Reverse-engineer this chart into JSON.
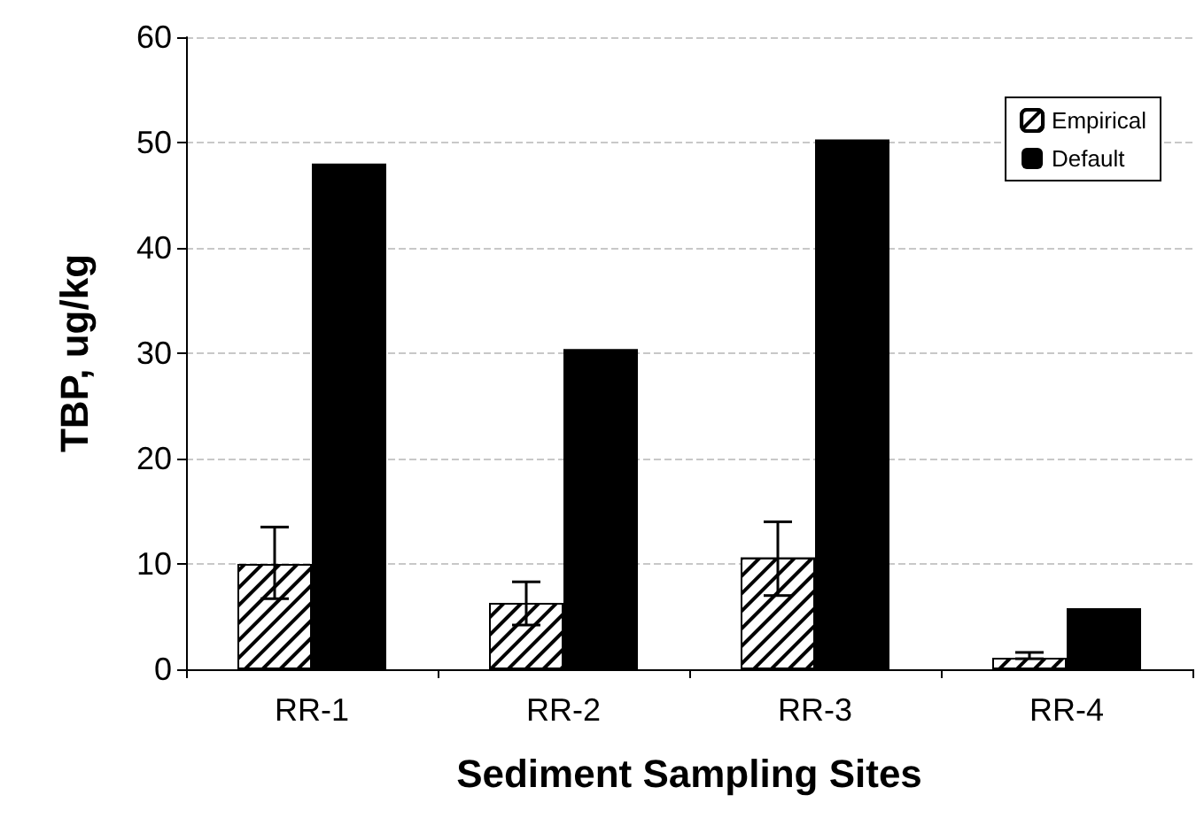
{
  "chart_data": {
    "type": "bar",
    "xlabel": "Sediment Sampling Sites",
    "ylabel": "TBP, ug/kg",
    "categories": [
      "RR-1",
      "RR-2",
      "RR-3",
      "RR-4"
    ],
    "series": [
      {
        "name": "Empirical",
        "color": "#000000",
        "values": [
          10.0,
          6.3,
          10.6,
          1.1
        ],
        "errors": [
          [
            6.7,
            13.5
          ],
          [
            4.2,
            8.3
          ],
          [
            7.0,
            14.0
          ],
          [
            1.0,
            1.6
          ]
        ]
      },
      {
        "name": "Default",
        "color": "#000000",
        "values": [
          48.0,
          30.4,
          50.3,
          5.8
        ]
      }
    ],
    "ylim": [
      0,
      60
    ],
    "yticks": [
      0,
      10,
      20,
      30,
      40,
      50,
      60
    ],
    "grid": "y",
    "legend": "top right"
  }
}
